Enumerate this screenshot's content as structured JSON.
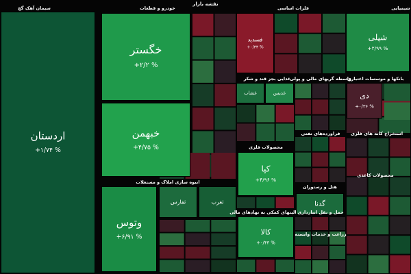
{
  "title": "نقشه بازار",
  "sectors": [
    {
      "title": "سیمان آهک گچ",
      "tiles": [
        {
          "name": "اردستان",
          "change": "+۱/۷۴ %",
          "color": "#0d5535"
        }
      ]
    },
    {
      "title": "خودرو و قطعات",
      "tiles": [
        {
          "name": "خگستر",
          "change": "+۲/۲ %",
          "color": "#1f9a4b"
        },
        {
          "name": "خبهمن",
          "change": "+۴/۷۵ %",
          "color": "#22a24d"
        }
      ]
    },
    {
      "title": "انبوه سازی املاک و مستغلات",
      "tiles": [
        {
          "name": "وتوس",
          "change": "+۶/۹۱ %",
          "color": "#1a8c45"
        },
        {
          "name": "ثفارس",
          "change": "",
          "color": "#1d6b3d"
        },
        {
          "name": "ثغرب",
          "change": "",
          "color": "#175e35"
        }
      ]
    },
    {
      "title": "فلزات اساسی",
      "tiles": [
        {
          "name": "فسدید",
          "change": "+۰/۳۳ %",
          "color": "#8a1a2a"
        }
      ]
    },
    {
      "title": "شیمیایی",
      "tiles": [
        {
          "name": "شپلی",
          "change": "+۲/۹۹ %",
          "color": "#1f8b46"
        }
      ]
    },
    {
      "title": "غذایی بجز قند و شکر",
      "tiles": [
        {
          "name": "غشاب",
          "change": "",
          "color": "#1c6e3e"
        },
        {
          "name": "غدیس",
          "change": "",
          "color": "#22874a"
        }
      ]
    },
    {
      "title": "واسطه گریهای مالی و پولی",
      "tiles": []
    },
    {
      "title": "بانکها و موسسات اعتباری",
      "tiles": [
        {
          "name": "دی",
          "change": "+۰/۳۶ %",
          "color": "#4a1f2b"
        }
      ]
    },
    {
      "title": "محصولات فلزی",
      "tiles": [
        {
          "name": "کپا",
          "change": "+۴/۹۶ %",
          "color": "#22a04c"
        }
      ]
    },
    {
      "title": "فراورده‌های نفتی",
      "tiles": []
    },
    {
      "title": "فعالیتهای کمکی به نهادهای مالی",
      "tiles": [
        {
          "name": "کالا",
          "change": "+۰/۴۳ %",
          "color": "#1e9048"
        }
      ]
    },
    {
      "title": "هتل و رستوران",
      "tiles": [
        {
          "name": "گدنا",
          "change": "",
          "color": "#1b6b3c"
        }
      ]
    },
    {
      "title": "استخراج کانه های فلزی",
      "tiles": []
    },
    {
      "title": "محصولات کاغذی",
      "tiles": []
    },
    {
      "title": "حمل و نقل انبارداری",
      "tiles": []
    },
    {
      "title": "زراعت و خدمات وابسته",
      "tiles": []
    }
  ]
}
